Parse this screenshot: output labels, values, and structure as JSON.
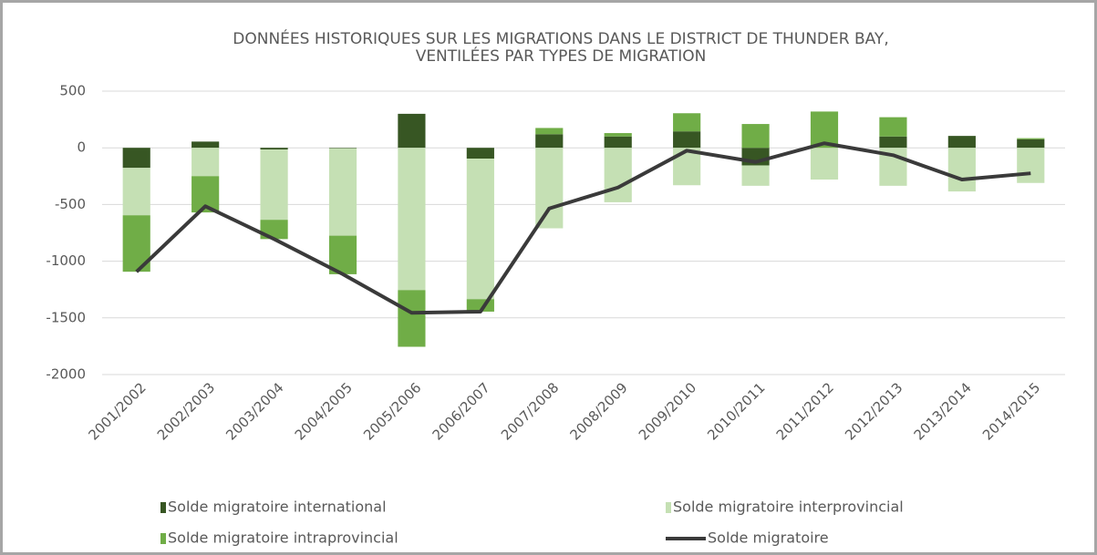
{
  "chart_data": {
    "type": "bar",
    "title": [
      "DONNÉES HISTORIQUES SUR LES MIGRATIONS DANS LE DISTRICT DE THUNDER BAY,",
      "VENTILÉES PAR TYPES DE MIGRATION"
    ],
    "categories": [
      "2001/2002",
      "2002/2003",
      "2003/2004",
      "2004/2005",
      "2005/2006",
      "2006/2007",
      "2007/2008",
      "2008/2009",
      "2009/2010",
      "2010/2011",
      "2011/2012",
      "2012/2013",
      "2013/2014",
      "2014/2015"
    ],
    "series": [
      {
        "name": "Solde migratoire international",
        "type": "bar",
        "color": "#375623",
        "values": [
          -177,
          55,
          -15,
          -5,
          300,
          -95,
          120,
          100,
          145,
          -155,
          0,
          100,
          105,
          75
        ]
      },
      {
        "name": "Solde migratoire interprovincial",
        "type": "bar",
        "color": "#c5e0b4",
        "values": [
          -418,
          -250,
          -620,
          -770,
          -1255,
          -1240,
          -710,
          -480,
          -330,
          -180,
          -280,
          -335,
          -385,
          -310
        ]
      },
      {
        "name": "Solde migratoire intraprovincial",
        "type": "bar",
        "color": "#70ad47",
        "values": [
          -498,
          -320,
          -170,
          -340,
          -500,
          -110,
          55,
          30,
          160,
          210,
          320,
          170,
          0,
          10
        ]
      },
      {
        "name": "Solde migratoire",
        "type": "line",
        "color": "#3a3a3a",
        "values": [
          -1093,
          -515,
          -805,
          -1115,
          -1455,
          -1445,
          -535,
          -350,
          -25,
          -125,
          40,
          -65,
          -280,
          -225
        ]
      }
    ],
    "ylim": [
      -2000,
      500
    ],
    "yticks": [
      500,
      0,
      -500,
      -1000,
      -1500,
      -2000
    ],
    "grid": true,
    "legend": "bottom"
  }
}
